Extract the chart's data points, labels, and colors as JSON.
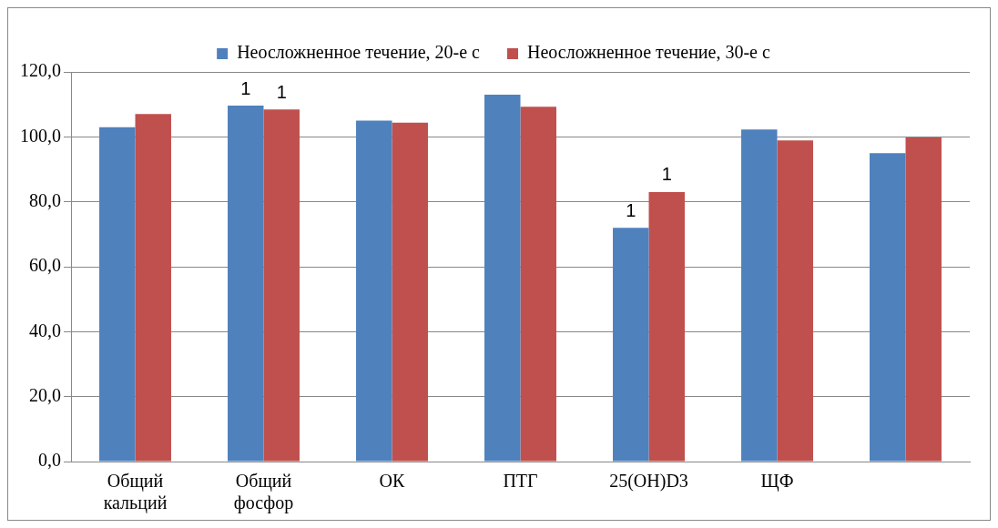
{
  "chart_data": {
    "type": "bar",
    "categories": [
      "Общий кальций",
      "Общий фосфор",
      "ОК",
      "ПТГ",
      "25(OH)D3",
      "ЩФ",
      null
    ],
    "series": [
      {
        "name": "Неосложненное течение, 20-е с",
        "color": "#4f81bd",
        "values": [
          103,
          109.6,
          105,
          113,
          72,
          102.3,
          95
        ]
      },
      {
        "name": "Неосложненное течение, 30-е с",
        "color": "#c0504d",
        "values": [
          107,
          108.4,
          104.4,
          109.3,
          83,
          98.9,
          99.8
        ]
      }
    ],
    "ylim": [
      0,
      120
    ],
    "yticks": [
      {
        "value": 0,
        "label": "0,0"
      },
      {
        "value": 20,
        "label": "20,0"
      },
      {
        "value": 40,
        "label": "40,0"
      },
      {
        "value": 60,
        "label": "60,0"
      },
      {
        "value": 80,
        "label": "80,0"
      },
      {
        "value": 100,
        "label": "100,0"
      },
      {
        "value": 120,
        "label": "120,0"
      }
    ],
    "grid": "y",
    "legend": "top",
    "annotations": [
      {
        "text": "1",
        "x": "Общий фосфор",
        "y": 109.6
      },
      {
        "text": "1",
        "x": "Общий фосфор",
        "y": 108.4
      },
      {
        "text": "1",
        "x": "25(OH)D3",
        "y": 72
      },
      {
        "text": "1",
        "x": "25(OH)D3",
        "y": 83
      }
    ]
  }
}
